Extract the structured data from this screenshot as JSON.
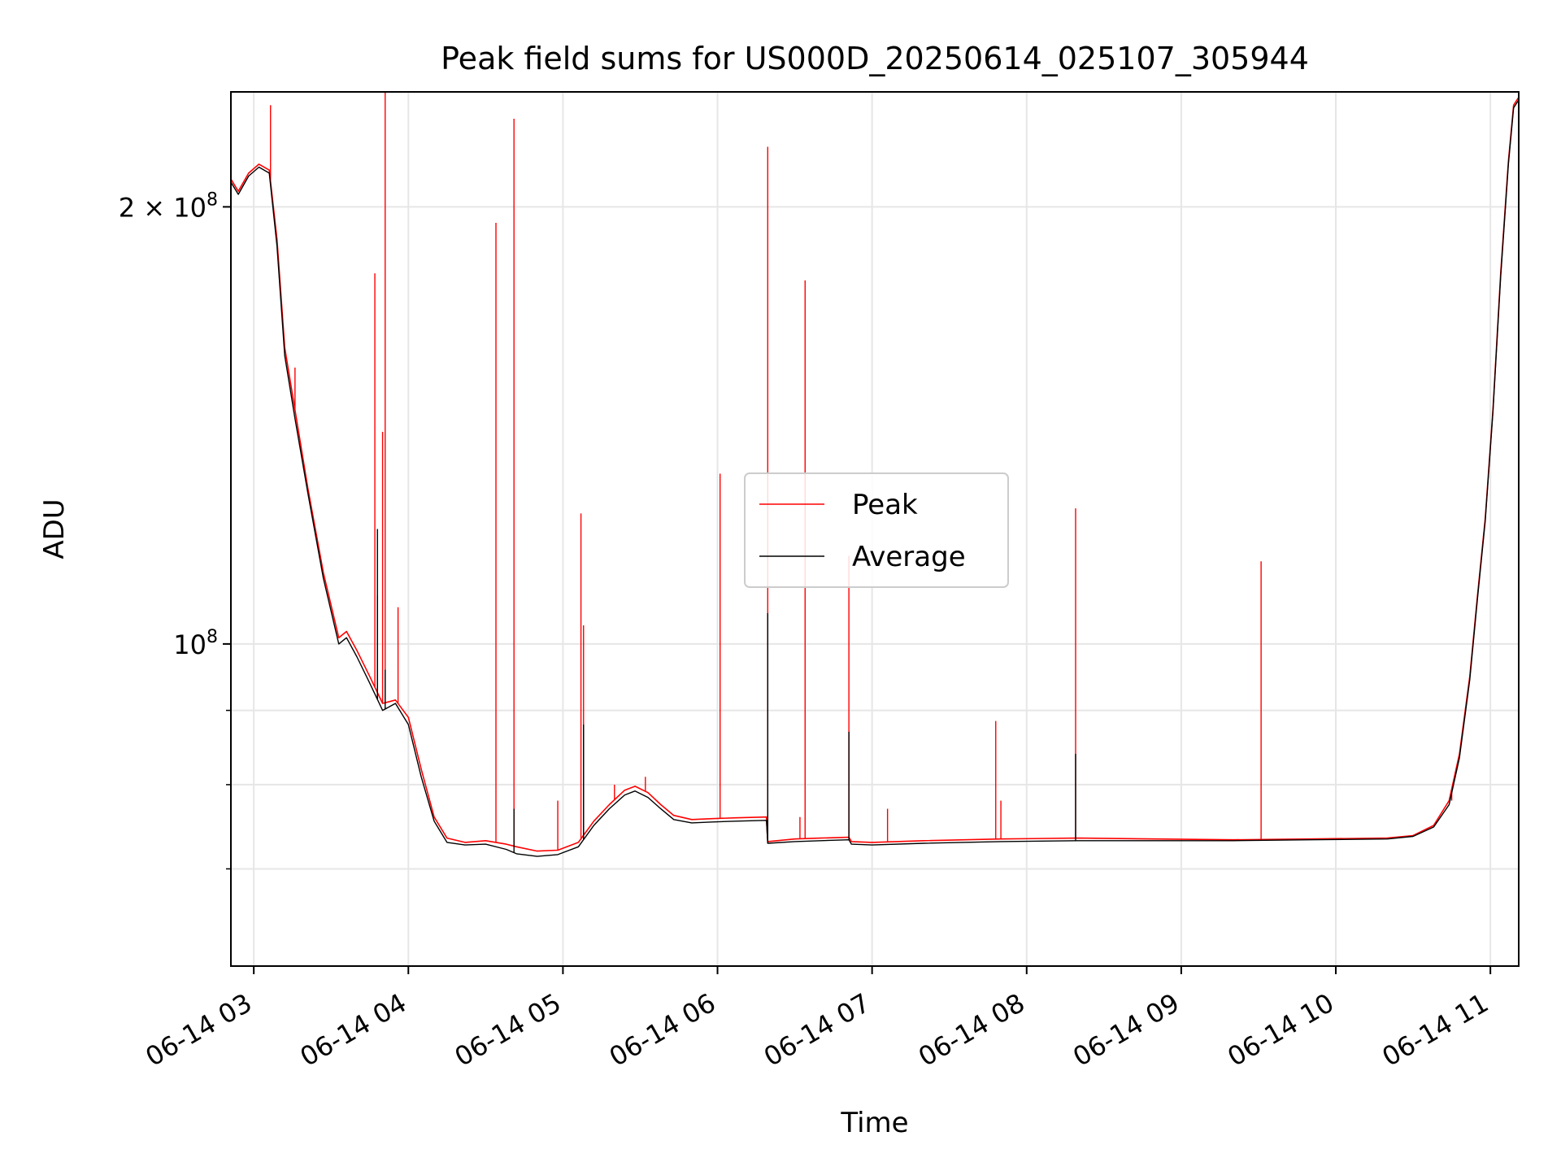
{
  "chart_data": {
    "type": "line",
    "title": "Peak field sums for US000D_20250614_025107_305944",
    "xlabel": "Time",
    "ylabel": "ADU",
    "yscale": "log",
    "ylim": [
      60000000,
      240000000
    ],
    "xlim": [
      "2025-06-14T02:51:07",
      "2025-06-14T11:11:00"
    ],
    "x_ticks": [
      {
        "t": "2025-06-14T03:00",
        "label": "06-14 03"
      },
      {
        "t": "2025-06-14T04:00",
        "label": "06-14 04"
      },
      {
        "t": "2025-06-14T05:00",
        "label": "06-14 05"
      },
      {
        "t": "2025-06-14T06:00",
        "label": "06-14 06"
      },
      {
        "t": "2025-06-14T07:00",
        "label": "06-14 07"
      },
      {
        "t": "2025-06-14T08:00",
        "label": "06-14 08"
      },
      {
        "t": "2025-06-14T09:00",
        "label": "06-14 09"
      },
      {
        "t": "2025-06-14T10:00",
        "label": "06-14 10"
      },
      {
        "t": "2025-06-14T11:00",
        "label": "06-14 11"
      }
    ],
    "y_ticks": [
      {
        "v": 100000000,
        "label": "10",
        "sup": "8"
      },
      {
        "v": 200000000,
        "label": "2 × 10",
        "sup": "8"
      }
    ],
    "y_minor_ticks": [
      70000000,
      80000000,
      90000000
    ],
    "grid": true,
    "legend_position": "center",
    "series": [
      {
        "name": "Peak",
        "color": "#ff0000",
        "points": [
          [
            "2025-06-14T02:51:07",
            209000000
          ],
          [
            "2025-06-14T02:54:00",
            205000000
          ],
          [
            "2025-06-14T02:58:00",
            211000000
          ],
          [
            "2025-06-14T03:02:00",
            214000000
          ],
          [
            "2025-06-14T03:06:00",
            212000000
          ],
          [
            "2025-06-14T03:09:00",
            190000000
          ],
          [
            "2025-06-14T03:12:00",
            160000000
          ],
          [
            "2025-06-14T03:16:00",
            145000000
          ],
          [
            "2025-06-14T03:21:00",
            128000000
          ],
          [
            "2025-06-14T03:27:00",
            112000000
          ],
          [
            "2025-06-14T03:33:00",
            101000000
          ],
          [
            "2025-06-14T03:36:00",
            102000000
          ],
          [
            "2025-06-14T03:40:00",
            99000000
          ],
          [
            "2025-06-14T03:45:00",
            95000000
          ],
          [
            "2025-06-14T03:50:00",
            91000000
          ],
          [
            "2025-06-14T03:55:00",
            91500000
          ],
          [
            "2025-06-14T04:00:00",
            89000000
          ],
          [
            "2025-06-14T04:05:00",
            82000000
          ],
          [
            "2025-06-14T04:10:00",
            76000000
          ],
          [
            "2025-06-14T04:15:00",
            73500000
          ],
          [
            "2025-06-14T04:22:00",
            73000000
          ],
          [
            "2025-06-14T04:30:00",
            73200000
          ],
          [
            "2025-06-14T04:38:00",
            72800000
          ],
          [
            "2025-06-14T04:42:00",
            72500000
          ],
          [
            "2025-06-14T04:50:00",
            72000000
          ],
          [
            "2025-06-14T04:58:00",
            72100000
          ],
          [
            "2025-06-14T05:06:00",
            73000000
          ],
          [
            "2025-06-14T05:12:00",
            75500000
          ],
          [
            "2025-06-14T05:18:00",
            77500000
          ],
          [
            "2025-06-14T05:24:00",
            79300000
          ],
          [
            "2025-06-14T05:28:00",
            79800000
          ],
          [
            "2025-06-14T05:33:00",
            79000000
          ],
          [
            "2025-06-14T05:38:00",
            77500000
          ],
          [
            "2025-06-14T05:43:00",
            76200000
          ],
          [
            "2025-06-14T05:50:00",
            75700000
          ],
          [
            "2025-06-14T05:58:00",
            75800000
          ],
          [
            "2025-06-14T06:07:00",
            75900000
          ],
          [
            "2025-06-14T06:19:00",
            76000000
          ],
          [
            "2025-06-14T06:19:30",
            73100000
          ],
          [
            "2025-06-14T06:30:00",
            73400000
          ],
          [
            "2025-06-14T06:40:00",
            73500000
          ],
          [
            "2025-06-14T06:51:00",
            73600000
          ],
          [
            "2025-06-14T06:52:00",
            73100000
          ],
          [
            "2025-06-14T07:00:00",
            73000000
          ],
          [
            "2025-06-14T07:20:00",
            73200000
          ],
          [
            "2025-06-14T07:50:00",
            73400000
          ],
          [
            "2025-06-14T08:20:00",
            73500000
          ],
          [
            "2025-06-14T08:50:00",
            73400000
          ],
          [
            "2025-06-14T09:20:00",
            73300000
          ],
          [
            "2025-06-14T09:50:00",
            73400000
          ],
          [
            "2025-06-14T10:20:00",
            73500000
          ],
          [
            "2025-06-14T10:30:00",
            73800000
          ],
          [
            "2025-06-14T10:38:00",
            75000000
          ],
          [
            "2025-06-14T10:44:00",
            78000000
          ],
          [
            "2025-06-14T10:48:00",
            84000000
          ],
          [
            "2025-06-14T10:52:00",
            95000000
          ],
          [
            "2025-06-14T10:55:00",
            108000000
          ],
          [
            "2025-06-14T10:58:00",
            122000000
          ],
          [
            "2025-06-14T11:01:00",
            145000000
          ],
          [
            "2025-06-14T11:04:00",
            180000000
          ],
          [
            "2025-06-14T11:07:00",
            215000000
          ],
          [
            "2025-06-14T11:09:00",
            235000000
          ],
          [
            "2025-06-14T11:11:00",
            238000000
          ]
        ],
        "spikes": [
          [
            "2025-06-14T03:06:30",
            235000000
          ],
          [
            "2025-06-14T03:16:00",
            155000000
          ],
          [
            "2025-06-14T03:47:00",
            180000000
          ],
          [
            "2025-06-14T03:48:00",
            108000000
          ],
          [
            "2025-06-14T03:51:00",
            240000000
          ],
          [
            "2025-06-14T03:50:00",
            140000000
          ],
          [
            "2025-06-14T03:56:00",
            106000000
          ],
          [
            "2025-06-14T04:34:00",
            195000000
          ],
          [
            "2025-06-14T04:41:00",
            230000000
          ],
          [
            "2025-06-14T04:58:00",
            78000000
          ],
          [
            "2025-06-14T05:07:00",
            123000000
          ],
          [
            "2025-06-14T05:08:00",
            103000000
          ],
          [
            "2025-06-14T05:20:00",
            80000000
          ],
          [
            "2025-06-14T05:32:00",
            81000000
          ],
          [
            "2025-06-14T06:01:00",
            131000000
          ],
          [
            "2025-06-14T06:19:30",
            220000000
          ],
          [
            "2025-06-14T06:34:00",
            178000000
          ],
          [
            "2025-06-14T06:32:00",
            76000000
          ],
          [
            "2025-06-14T06:51:00",
            115000000
          ],
          [
            "2025-06-14T07:06:00",
            77000000
          ],
          [
            "2025-06-14T07:48:00",
            88500000
          ],
          [
            "2025-06-14T07:50:00",
            78000000
          ],
          [
            "2025-06-14T08:19:00",
            124000000
          ],
          [
            "2025-06-14T09:31:00",
            114000000
          ],
          [
            "2025-06-14T10:45:00",
            78000000
          ]
        ]
      },
      {
        "name": "Average",
        "color": "#000000",
        "points": [
          [
            "2025-06-14T02:51:07",
            208000000
          ],
          [
            "2025-06-14T02:54:00",
            204000000
          ],
          [
            "2025-06-14T02:58:00",
            210000000
          ],
          [
            "2025-06-14T03:02:00",
            213000000
          ],
          [
            "2025-06-14T03:06:00",
            211000000
          ],
          [
            "2025-06-14T03:09:00",
            188000000
          ],
          [
            "2025-06-14T03:12:00",
            158000000
          ],
          [
            "2025-06-14T03:16:00",
            143000000
          ],
          [
            "2025-06-14T03:21:00",
            127000000
          ],
          [
            "2025-06-14T03:27:00",
            111000000
          ],
          [
            "2025-06-14T03:33:00",
            100000000
          ],
          [
            "2025-06-14T03:36:00",
            101000000
          ],
          [
            "2025-06-14T03:40:00",
            98000000
          ],
          [
            "2025-06-14T03:45:00",
            94000000
          ],
          [
            "2025-06-14T03:50:00",
            90000000
          ],
          [
            "2025-06-14T03:55:00",
            91000000
          ],
          [
            "2025-06-14T04:00:00",
            88000000
          ],
          [
            "2025-06-14T04:05:00",
            81000000
          ],
          [
            "2025-06-14T04:10:00",
            75500000
          ],
          [
            "2025-06-14T04:15:00",
            73000000
          ],
          [
            "2025-06-14T04:22:00",
            72700000
          ],
          [
            "2025-06-14T04:30:00",
            72800000
          ],
          [
            "2025-06-14T04:38:00",
            72200000
          ],
          [
            "2025-06-14T04:42:00",
            71700000
          ],
          [
            "2025-06-14T04:50:00",
            71400000
          ],
          [
            "2025-06-14T04:58:00",
            71600000
          ],
          [
            "2025-06-14T05:06:00",
            72500000
          ],
          [
            "2025-06-14T05:12:00",
            75000000
          ],
          [
            "2025-06-14T05:18:00",
            77000000
          ],
          [
            "2025-06-14T05:24:00",
            78700000
          ],
          [
            "2025-06-14T05:28:00",
            79200000
          ],
          [
            "2025-06-14T05:33:00",
            78400000
          ],
          [
            "2025-06-14T05:38:00",
            77000000
          ],
          [
            "2025-06-14T05:43:00",
            75700000
          ],
          [
            "2025-06-14T05:50:00",
            75300000
          ],
          [
            "2025-06-14T05:58:00",
            75400000
          ],
          [
            "2025-06-14T06:07:00",
            75500000
          ],
          [
            "2025-06-14T06:19:00",
            75600000
          ],
          [
            "2025-06-14T06:19:30",
            72900000
          ],
          [
            "2025-06-14T06:30:00",
            73100000
          ],
          [
            "2025-06-14T06:40:00",
            73200000
          ],
          [
            "2025-06-14T06:51:00",
            73300000
          ],
          [
            "2025-06-14T06:52:00",
            72800000
          ],
          [
            "2025-06-14T07:00:00",
            72700000
          ],
          [
            "2025-06-14T07:20:00",
            72900000
          ],
          [
            "2025-06-14T07:50:00",
            73100000
          ],
          [
            "2025-06-14T08:20:00",
            73200000
          ],
          [
            "2025-06-14T08:50:00",
            73200000
          ],
          [
            "2025-06-14T09:20:00",
            73200000
          ],
          [
            "2025-06-14T09:50:00",
            73300000
          ],
          [
            "2025-06-14T10:20:00",
            73400000
          ],
          [
            "2025-06-14T10:30:00",
            73700000
          ],
          [
            "2025-06-14T10:38:00",
            74800000
          ],
          [
            "2025-06-14T10:44:00",
            77500000
          ],
          [
            "2025-06-14T10:48:00",
            83500000
          ],
          [
            "2025-06-14T10:52:00",
            94500000
          ],
          [
            "2025-06-14T10:55:00",
            107500000
          ],
          [
            "2025-06-14T10:58:00",
            121500000
          ],
          [
            "2025-06-14T11:01:00",
            144500000
          ],
          [
            "2025-06-14T11:04:00",
            179000000
          ],
          [
            "2025-06-14T11:07:00",
            214000000
          ],
          [
            "2025-06-14T11:09:00",
            234000000
          ],
          [
            "2025-06-14T11:11:00",
            237000000
          ]
        ],
        "spikes": [
          [
            "2025-06-14T03:48:00",
            120000000
          ],
          [
            "2025-06-14T03:51:00",
            96000000
          ],
          [
            "2025-06-14T04:41:00",
            77000000
          ],
          [
            "2025-06-14T05:08:00",
            88000000
          ],
          [
            "2025-06-14T06:19:30",
            105000000
          ],
          [
            "2025-06-14T06:51:00",
            87000000
          ],
          [
            "2025-06-14T08:19:00",
            84000000
          ]
        ]
      }
    ]
  }
}
